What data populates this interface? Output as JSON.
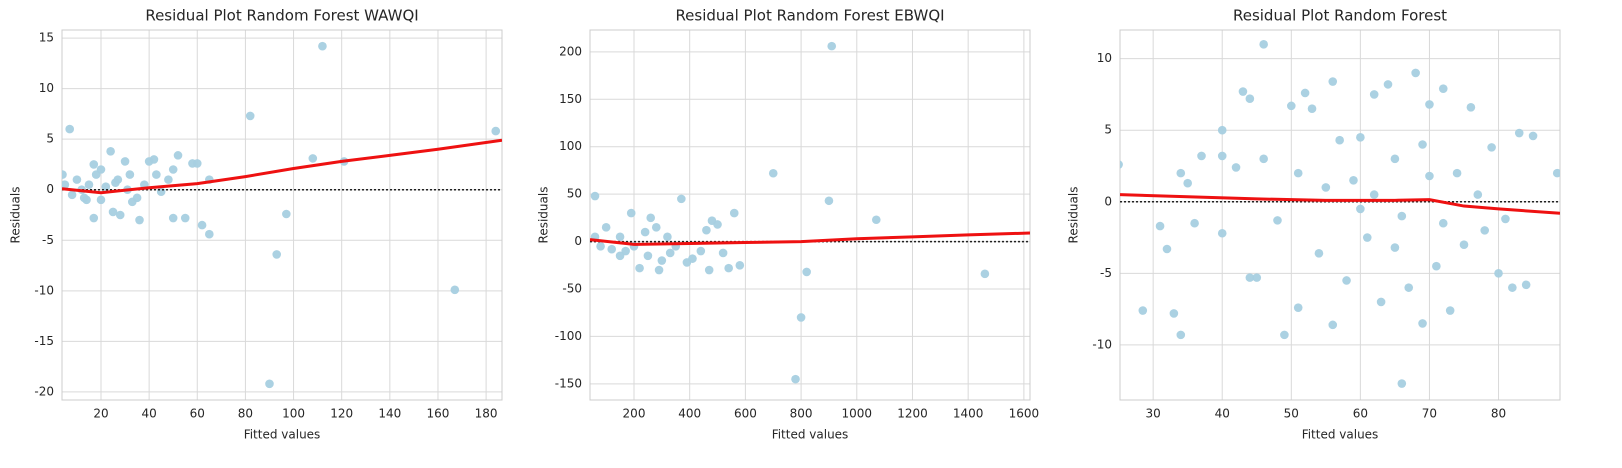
{
  "chart_data": [
    {
      "type": "scatter",
      "title": "Residual Plot Random Forest WAWQI",
      "xlabel": "Fitted values",
      "ylabel": "Residuals",
      "xlim": [
        3.8,
        186.6
      ],
      "ylim": [
        -20.8,
        15.8
      ],
      "xticks": [
        20,
        40,
        60,
        80,
        100,
        120,
        140,
        160,
        180
      ],
      "yticks": [
        -20,
        -15,
        -10,
        -5,
        0,
        5,
        10,
        15
      ],
      "grid": true,
      "hline": 0,
      "series": [
        {
          "color": "#a6cfe0",
          "x": [
            7,
            5,
            8,
            10,
            12,
            14,
            15,
            17,
            17,
            18,
            20,
            20,
            22,
            24,
            25,
            27,
            28,
            30,
            31,
            32,
            33,
            35,
            36,
            38,
            40,
            42,
            43,
            45,
            48,
            50,
            50,
            52,
            55,
            58,
            60,
            62,
            65,
            65,
            82,
            90,
            93,
            97,
            108,
            112,
            121,
            167,
            184,
            4,
            13,
            26
          ],
          "values": [
            6,
            0.5,
            -0.5,
            1,
            0,
            -1,
            0.5,
            2.5,
            -2.8,
            1.5,
            -1,
            2,
            0.3,
            3.8,
            -2.2,
            1,
            -2.5,
            2.8,
            0,
            1.5,
            -1.2,
            -0.8,
            -3,
            0.5,
            2.8,
            3,
            1.5,
            -0.2,
            1,
            2,
            -2.8,
            3.4,
            -2.8,
            2.6,
            2.6,
            -3.5,
            -4.4,
            1,
            7.3,
            -19.2,
            -6.4,
            -2.4,
            3.1,
            14.2,
            2.8,
            -9.9,
            5.8,
            1.5,
            -0.8,
            0.7
          ]
        }
      ],
      "trend": {
        "color": "#ee1111",
        "x": [
          3.8,
          20,
          40,
          60,
          80,
          100,
          120,
          140,
          160,
          186.6
        ],
        "values": [
          0.1,
          -0.3,
          0.2,
          0.6,
          1.3,
          2.1,
          2.8,
          3.4,
          4.0,
          4.9
        ]
      }
    },
    {
      "type": "scatter",
      "title": "Residual Plot Random Forest EBWQI",
      "xlabel": "Fitted values",
      "ylabel": "Residuals",
      "xlim": [
        42,
        1622
      ],
      "ylim": [
        -167,
        223
      ],
      "xticks": [
        200,
        400,
        600,
        800,
        1000,
        1200,
        1400,
        1600
      ],
      "yticks": [
        -150,
        -100,
        -50,
        0,
        50,
        100,
        150,
        200
      ],
      "grid": true,
      "hline": 0,
      "series": [
        {
          "color": "#a6cfe0",
          "x": [
            60,
            60,
            80,
            100,
            120,
            150,
            170,
            190,
            200,
            220,
            240,
            250,
            260,
            280,
            290,
            300,
            320,
            350,
            370,
            390,
            410,
            440,
            460,
            470,
            480,
            500,
            520,
            540,
            560,
            580,
            700,
            780,
            800,
            820,
            900,
            910,
            1070,
            1460,
            150,
            330
          ],
          "values": [
            48,
            5,
            -5,
            15,
            -8,
            5,
            -10,
            30,
            -5,
            -28,
            10,
            -15,
            25,
            15,
            -30,
            -20,
            5,
            -5,
            45,
            -22,
            -18,
            -10,
            12,
            -30,
            22,
            18,
            -12,
            -28,
            30,
            -25,
            72,
            -145,
            -80,
            -32,
            43,
            206,
            23,
            -34,
            -15,
            -12
          ]
        }
      ],
      "trend": {
        "color": "#ee1111",
        "x": [
          42,
          200,
          400,
          600,
          800,
          1000,
          1200,
          1400,
          1622
        ],
        "values": [
          2,
          -3,
          -2,
          -1,
          0,
          3,
          5,
          7,
          9
        ]
      }
    },
    {
      "type": "scatter",
      "title": "Residual Plot Random Forest",
      "xlabel": "Fitted values",
      "ylabel": "Residuals",
      "xlim": [
        25.2,
        88.9
      ],
      "ylim": [
        -13.85,
        12.0
      ],
      "xticks": [
        30,
        40,
        50,
        60,
        70,
        80
      ],
      "yticks": [
        -10,
        -5,
        0,
        5,
        10
      ],
      "grid": true,
      "hline": 0,
      "series": [
        {
          "color": "#a6cfe0",
          "x": [
            25,
            28.5,
            31,
            32,
            33,
            34,
            34,
            35,
            36,
            37,
            40,
            40,
            40,
            42,
            43,
            44,
            44,
            45,
            46,
            46,
            48,
            49,
            50,
            51,
            51,
            52,
            53,
            54,
            55,
            56,
            56,
            57,
            58,
            59,
            60,
            61,
            62,
            62,
            63,
            64,
            65,
            66,
            66,
            67,
            68,
            69,
            69,
            70,
            71,
            72,
            73,
            74,
            75,
            76,
            77,
            78,
            79,
            80,
            81,
            82,
            83,
            84,
            85,
            88.5,
            60,
            65,
            70,
            72
          ],
          "values": [
            2.6,
            -7.6,
            -1.7,
            -3.3,
            -7.8,
            -9.3,
            2.0,
            1.3,
            -1.5,
            3.2,
            3.2,
            5.0,
            -2.2,
            2.4,
            7.7,
            7.2,
            -5.3,
            -5.3,
            11.0,
            3.0,
            -1.3,
            -9.3,
            6.7,
            -7.4,
            2.0,
            7.6,
            6.5,
            -3.6,
            1.0,
            8.4,
            -8.6,
            4.3,
            -5.5,
            1.5,
            4.5,
            -2.5,
            0.5,
            7.5,
            -7.0,
            8.2,
            3.0,
            -1.0,
            -12.7,
            -6.0,
            9.0,
            -8.5,
            4.0,
            6.8,
            -4.5,
            7.9,
            -7.6,
            2.0,
            -3.0,
            6.6,
            0.5,
            -2.0,
            3.8,
            -5.0,
            -1.2,
            -6.0,
            4.8,
            -5.8,
            4.6,
            2.0,
            -0.5,
            -3.2,
            1.8,
            -1.5
          ]
        }
      ],
      "trend": {
        "color": "#ee1111",
        "x": [
          25.2,
          35,
          45,
          55,
          65,
          70,
          75,
          80,
          88.9
        ],
        "values": [
          0.5,
          0.35,
          0.2,
          0.1,
          0.1,
          0.15,
          -0.3,
          -0.5,
          -0.8
        ]
      }
    }
  ]
}
